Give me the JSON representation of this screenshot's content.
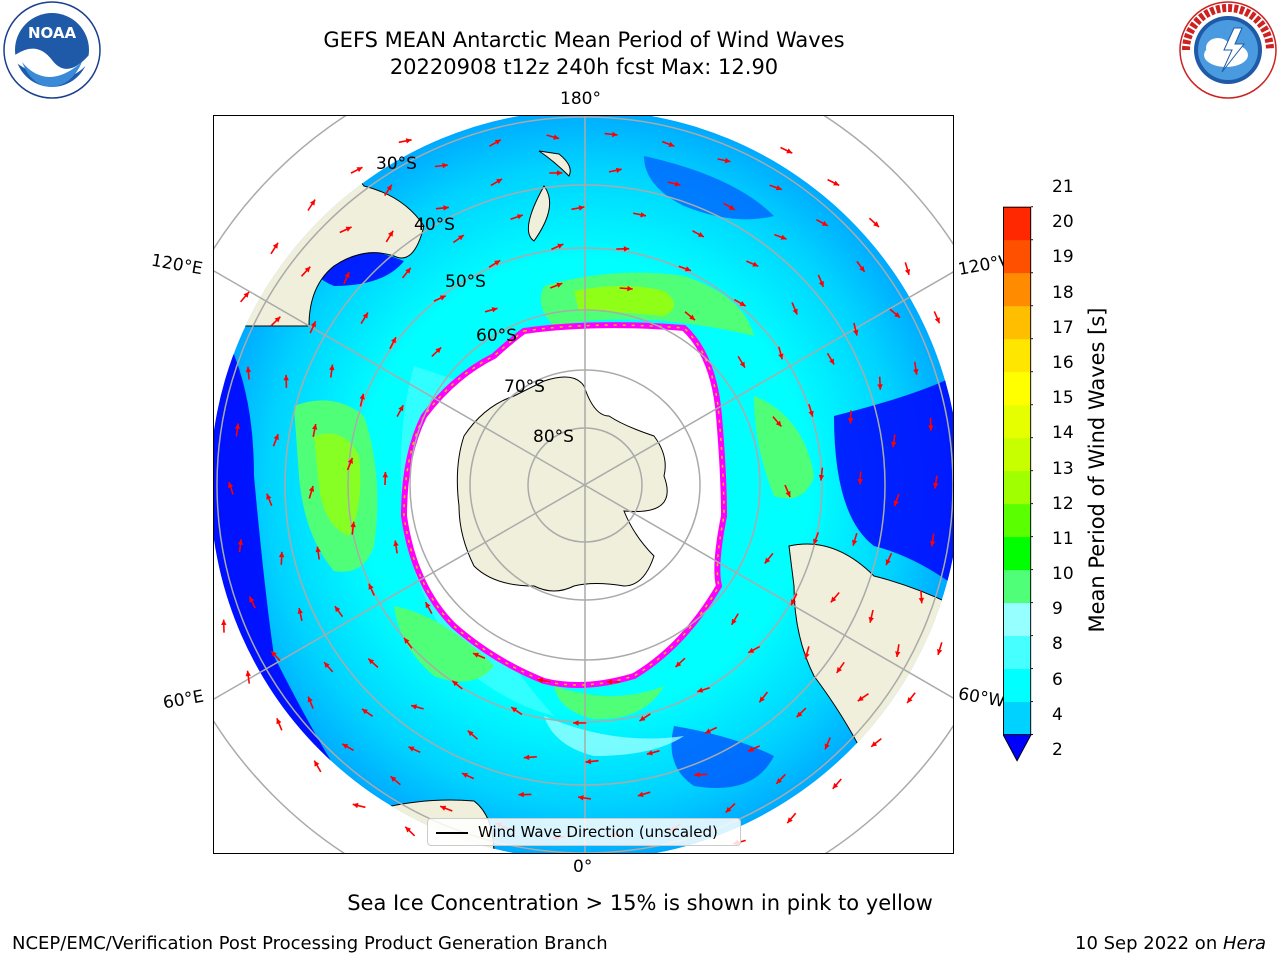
{
  "header": {
    "title_line1": "GEFS MEAN Antarctic Mean Period of Wind Waves",
    "title_line2": "20220908 t12z 240h fcst   Max: 12.90"
  },
  "logos": {
    "left": {
      "name": "noaa-logo",
      "text": "NOAA",
      "ring_text": "NATIONAL OCEANIC AND ATMOSPHERIC ADMINISTRATION · U.S. DEPARTMENT OF COMMERCE"
    },
    "right": {
      "name": "nws-logo",
      "ring_text": "NATIONAL WEATHER SERVICE"
    }
  },
  "map": {
    "projection": "south-polar-stereographic",
    "longitude_labels": {
      "top": "180°",
      "bottom": "0°",
      "left_upper": "120°E",
      "left_lower": "60°E",
      "right_upper": "120°W",
      "right_lower": "60°W"
    },
    "latitude_labels": [
      "30°S",
      "40°S",
      "50°S",
      "60°S",
      "70°S",
      "80°S"
    ],
    "legend": "Wind Wave Direction (unscaled)",
    "colors": {
      "land": "#efefdb",
      "ocean_low": "#0000ff",
      "ocean_mid": "#00ffff",
      "ocean_high": "#00dd00",
      "ice_edge": "#ff00ff",
      "arrows": "#ff0000"
    }
  },
  "colorbar": {
    "label": "Mean Period of Wind Waves [s]",
    "ticks": [
      "2",
      "4",
      "6",
      "8",
      "9",
      "10",
      "11",
      "12",
      "13",
      "14",
      "15",
      "16",
      "17",
      "18",
      "19",
      "20",
      "21"
    ],
    "colors": [
      "#0055ff",
      "#00d2ff",
      "#00ffff",
      "#46ffff",
      "#96ffff",
      "#50ff78",
      "#00ff00",
      "#5aff00",
      "#a0ff00",
      "#c8ff00",
      "#e6ff00",
      "#ffff00",
      "#ffe600",
      "#ffbe00",
      "#ff8c00",
      "#ff5000",
      "#ff2800",
      "#ff0000"
    ],
    "extend_color": "#0000ff"
  },
  "footer": {
    "note": "Sea Ice Concentration > 15% is shown in pink to yellow",
    "credit_left": "NCEP/EMC/Verification Post Processing Product Generation Branch",
    "credit_right_prefix": "10 Sep 2022 on ",
    "credit_right_machine": "Hera"
  }
}
